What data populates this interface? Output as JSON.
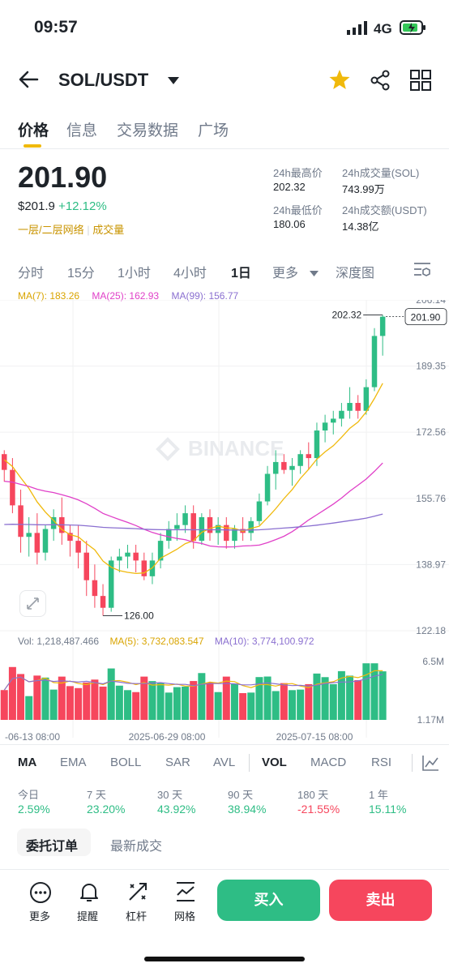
{
  "status_bar": {
    "time": "09:57",
    "network": "4G"
  },
  "header": {
    "pair": "SOL/USDT"
  },
  "tabs": [
    "价格",
    "信息",
    "交易数据",
    "广场"
  ],
  "ticker": {
    "price": "201.90",
    "usd_price": "$201.9",
    "change": "+12.12%",
    "tag1": "一层/二层网络",
    "tag2": "成交量",
    "high_label": "24h最高价",
    "high_value": "202.32",
    "vol_sol_label": "24h成交量(SOL)",
    "vol_sol_value": "743.99万",
    "low_label": "24h最低价",
    "low_value": "180.06",
    "vol_usdt_label": "24h成交额(USDT)",
    "vol_usdt_value": "14.38亿"
  },
  "intervals": [
    "分时",
    "15分",
    "1小时",
    "4小时",
    "1日",
    "更多",
    "深度图"
  ],
  "active_interval": "1日",
  "ma_header": {
    "ma7": "MA(7): 183.26",
    "ma25": "MA(25): 162.93",
    "ma99": "MA(99): 156.77"
  },
  "vol_header": {
    "vol": "Vol: 1,218,487.466",
    "ma5": "MA(5): 3,732,083.547",
    "ma10": "MA(10): 3,774,100.972"
  },
  "chart_labels": {
    "max_price": "202.32",
    "min_price": "126.00",
    "current": "201.90",
    "watermark": "BINANCE"
  },
  "price_axis": [
    "206.14",
    "189.35",
    "172.56",
    "155.76",
    "138.97",
    "122.18"
  ],
  "vol_axis": [
    "6.5M",
    "1.17M"
  ],
  "dates": [
    "-06-13 08:00",
    "2025-06-29 08:00",
    "2025-07-15 08:00"
  ],
  "indicators": [
    "MA",
    "EMA",
    "BOLL",
    "SAR",
    "AVL",
    "VOL",
    "MACD",
    "RSI"
  ],
  "performance": [
    {
      "label": "今日",
      "value": "2.59%"
    },
    {
      "label": "7 天",
      "value": "23.20%"
    },
    {
      "label": "30 天",
      "value": "43.92%"
    },
    {
      "label": "90 天",
      "value": "38.94%"
    },
    {
      "label": "180 天",
      "value": "-21.55%"
    },
    {
      "label": "1 年",
      "value": "15.11%"
    }
  ],
  "order_tabs": [
    "委托订单",
    "最新成交"
  ],
  "footer": {
    "more": "更多",
    "alert": "提醒",
    "leverage": "杠杆",
    "grid": "网格",
    "buy": "买入",
    "sell": "卖出"
  },
  "colors": {
    "up": "#2ebd85",
    "down": "#f6465d",
    "ma7": "#f0b90b",
    "ma25": "#e040c8",
    "ma99": "#8a6fd0"
  },
  "chart_data": {
    "type": "candlestick",
    "symbol": "SOL/USDT",
    "interval": "1D",
    "ylim": [
      122.18,
      206.14
    ],
    "candles_ohlc": [
      [
        167,
        168,
        160,
        163
      ],
      [
        163,
        166,
        152,
        154
      ],
      [
        154,
        158,
        142,
        146
      ],
      [
        146,
        151,
        141,
        147
      ],
      [
        147,
        152,
        139,
        142
      ],
      [
        142,
        149,
        140,
        148
      ],
      [
        148,
        153,
        145,
        151
      ],
      [
        151,
        156,
        144,
        147
      ],
      [
        147,
        149,
        141,
        145
      ],
      [
        145,
        149,
        138,
        142
      ],
      [
        142,
        145,
        131,
        135
      ],
      [
        135,
        139,
        128,
        131
      ],
      [
        131,
        134,
        126,
        128
      ],
      [
        128,
        141,
        127,
        140
      ],
      [
        140,
        143,
        137,
        141
      ],
      [
        141,
        144,
        138,
        142
      ],
      [
        142,
        144,
        137,
        140
      ],
      [
        140,
        142,
        135,
        136
      ],
      [
        136,
        142,
        134,
        140
      ],
      [
        140,
        147,
        138,
        145
      ],
      [
        145,
        150,
        143,
        148
      ],
      [
        148,
        152,
        145,
        149
      ],
      [
        149,
        154,
        147,
        152
      ],
      [
        152,
        154,
        143,
        145
      ],
      [
        145,
        152,
        144,
        151
      ],
      [
        151,
        153,
        145,
        147
      ],
      [
        147,
        151,
        144,
        149
      ],
      [
        149,
        151,
        143,
        145
      ],
      [
        145,
        149,
        143,
        148
      ],
      [
        148,
        151,
        145,
        147
      ],
      [
        147,
        151,
        145,
        150
      ],
      [
        150,
        157,
        149,
        155
      ],
      [
        155,
        164,
        154,
        162
      ],
      [
        162,
        168,
        158,
        165
      ],
      [
        165,
        167,
        162,
        163
      ],
      [
        163,
        166,
        159,
        164
      ],
      [
        164,
        168,
        162,
        167
      ],
      [
        167,
        170,
        163,
        166
      ],
      [
        166,
        175,
        164,
        173
      ],
      [
        173,
        177,
        170,
        175
      ],
      [
        175,
        178,
        172,
        176
      ],
      [
        176,
        180,
        174,
        178
      ],
      [
        178,
        184,
        176,
        180
      ],
      [
        180,
        182,
        176,
        178
      ],
      [
        178,
        186,
        177,
        184
      ],
      [
        184,
        199,
        183,
        197
      ],
      [
        197,
        202.32,
        192,
        201.9
      ]
    ],
    "volume_scale": "M",
    "volume_ylim": [
      0,
      6.5
    ]
  }
}
